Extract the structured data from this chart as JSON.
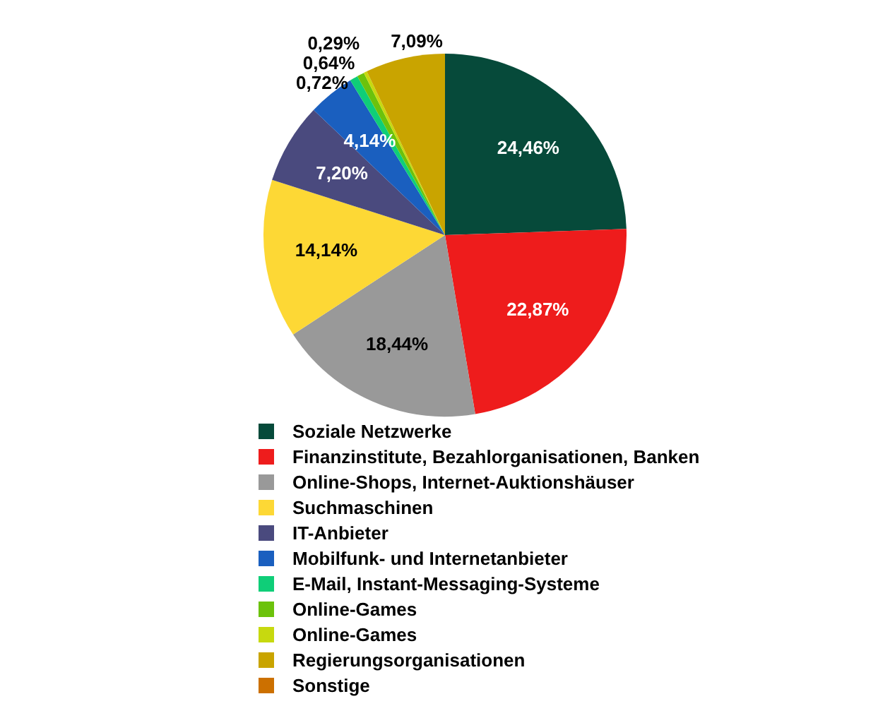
{
  "chart_data": {
    "type": "pie",
    "categories": [
      "Soziale Netzwerke",
      "Finanzinstitute, Bezahlorganisationen, Banken",
      "Online-Shops, Internet-Auktionshäuser",
      "Suchmaschinen",
      "IT-Anbieter",
      "Mobilfunk- und Internetanbieter",
      "E-Mail, Instant-Messaging-Systeme",
      "Online-Games",
      "Online-Games",
      "Regierungsorganisationen",
      "Sonstige"
    ],
    "values": [
      24.46,
      22.87,
      18.44,
      14.14,
      7.2,
      4.14,
      0.72,
      0.64,
      0.29,
      7.09,
      0
    ],
    "value_labels": [
      "24,46%",
      "22,87%",
      "18,44%",
      "14,14%",
      "7,20%",
      "4,14%",
      "0,72%",
      "0,64%",
      "0,29%",
      "7,09%",
      null
    ],
    "colors": [
      "#064a3a",
      "#ee1c1c",
      "#999999",
      "#fdd835",
      "#4a4a7e",
      "#1a5fbf",
      "#0fce78",
      "#6cc20c",
      "#c7d90f",
      "#c9a400",
      "#cc7000"
    ],
    "legend": "bottom"
  }
}
